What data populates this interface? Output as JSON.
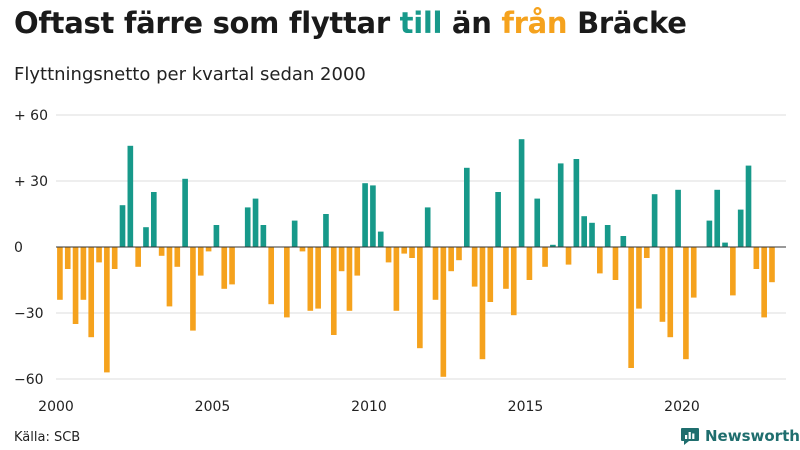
{
  "header": {
    "title_before": "Oftast färre som flyttar ",
    "title_in": "till",
    "title_mid": " än ",
    "title_out": "från",
    "title_after": " Bräcke",
    "subtitle": "Flyttningsnetto per kvartal sedan 2000"
  },
  "footer": {
    "source": "Källa: SCB",
    "brand": "Newsworthy"
  },
  "colors": {
    "positive": "#17998a",
    "negative": "#f5a21d",
    "title_in": "#17998a",
    "title_out": "#f5a21d",
    "brand": "#1f6e6e"
  },
  "chart_data": {
    "type": "bar",
    "x_start": "2000 Q1",
    "ylim": [
      -60,
      60
    ],
    "yticks": [
      -60,
      -30,
      0,
      30,
      60
    ],
    "ytick_labels": [
      "−60",
      "−30",
      "0",
      "+ 30",
      "+ 60"
    ],
    "xticks": [
      2000,
      2005,
      2010,
      2015,
      2020
    ],
    "grid": true,
    "values": [
      -24,
      -10,
      -35,
      -24,
      -41,
      -7,
      -57,
      -10,
      19,
      46,
      -9,
      9,
      25,
      -4,
      -27,
      -9,
      31,
      -38,
      -13,
      -2,
      10,
      -19,
      -17,
      0,
      18,
      22,
      10,
      -26,
      0,
      -32,
      12,
      -2,
      -29,
      -28,
      15,
      -40,
      -11,
      -29,
      -13,
      29,
      28,
      7,
      -7,
      -29,
      -3,
      -5,
      -46,
      18,
      -24,
      -59,
      -11,
      -6,
      36,
      -18,
      -51,
      -25,
      25,
      -19,
      -31,
      49,
      -15,
      22,
      -9,
      1,
      38,
      -8,
      40,
      14,
      11,
      -12,
      10,
      -15,
      5,
      -55,
      -28,
      -5,
      24,
      -34,
      -41,
      26,
      -51,
      -23,
      0,
      12,
      26,
      2,
      -22,
      17,
      37,
      -10,
      -32,
      -16
    ]
  }
}
